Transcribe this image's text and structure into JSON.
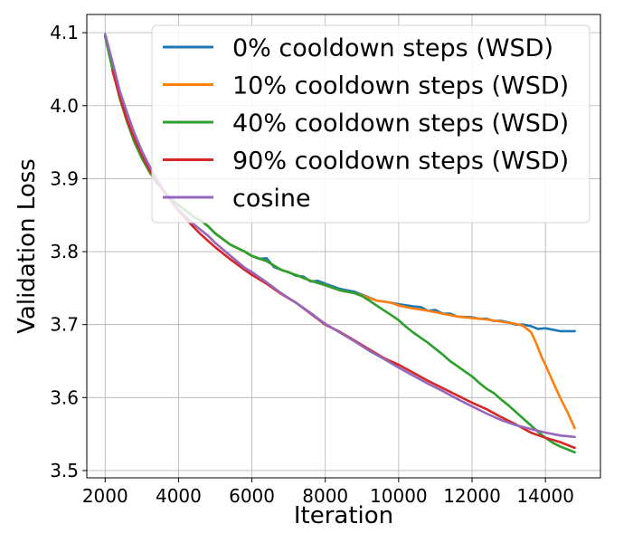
{
  "chart_data": {
    "type": "line",
    "title": "",
    "xlabel": "Iteration",
    "ylabel": "Validation Loss",
    "xlim": [
      1500,
      15500
    ],
    "ylim": [
      3.49,
      4.125
    ],
    "xticks": [
      2000,
      4000,
      6000,
      8000,
      10000,
      12000,
      14000
    ],
    "yticks": [
      3.5,
      3.6,
      3.7,
      3.8,
      3.9,
      4.0,
      4.1
    ],
    "grid": true,
    "legend_position": "top-right",
    "series": [
      {
        "name": "0% cooldown steps (WSD)",
        "color": "#1f77b4",
        "x": [
          2000,
          2200,
          2400,
          2600,
          2800,
          3000,
          3200,
          3400,
          3600,
          3800,
          4000,
          4200,
          4400,
          4600,
          4800,
          5000,
          5400,
          5800,
          6000,
          6200,
          6400,
          6600,
          6800,
          7000,
          7200,
          7400,
          7600,
          7800,
          8000,
          8400,
          8800,
          9000,
          9400,
          9800,
          10000,
          10400,
          10600,
          10800,
          11000,
          11200,
          11400,
          11600,
          12000,
          12200,
          12400,
          12600,
          12800,
          13000,
          13200,
          13400,
          13600,
          13800,
          14000,
          14200,
          14400,
          14600,
          14800
        ],
        "y": [
          4.095,
          4.05,
          4.01,
          3.978,
          3.95,
          3.928,
          3.91,
          3.895,
          3.883,
          3.872,
          3.864,
          3.856,
          3.848,
          3.843,
          3.835,
          3.825,
          3.81,
          3.8,
          3.794,
          3.79,
          3.791,
          3.779,
          3.775,
          3.772,
          3.767,
          3.766,
          3.759,
          3.76,
          3.756,
          3.749,
          3.745,
          3.741,
          3.733,
          3.73,
          3.728,
          3.725,
          3.724,
          3.719,
          3.72,
          3.715,
          3.715,
          3.711,
          3.71,
          3.708,
          3.708,
          3.705,
          3.705,
          3.703,
          3.7,
          3.7,
          3.698,
          3.694,
          3.695,
          3.693,
          3.691,
          3.691,
          3.691
        ]
      },
      {
        "name": "10% cooldown steps (WSD)",
        "color": "#ff7f0e",
        "x": [
          2000,
          2200,
          2400,
          2600,
          2800,
          3000,
          3200,
          3400,
          3600,
          3800,
          4000,
          4200,
          4400,
          4600,
          4800,
          5000,
          5400,
          5800,
          6000,
          6400,
          6800,
          7200,
          7600,
          8000,
          8400,
          8800,
          9000,
          9400,
          9800,
          10000,
          10400,
          10800,
          11200,
          11600,
          12000,
          12400,
          12800,
          13200,
          13400,
          13600,
          13700,
          13800,
          13900,
          14000,
          14200,
          14400,
          14600,
          14800
        ],
        "y": [
          4.095,
          4.05,
          4.01,
          3.978,
          3.95,
          3.928,
          3.91,
          3.895,
          3.883,
          3.872,
          3.864,
          3.856,
          3.848,
          3.843,
          3.835,
          3.825,
          3.81,
          3.8,
          3.794,
          3.787,
          3.775,
          3.768,
          3.76,
          3.754,
          3.747,
          3.743,
          3.74,
          3.733,
          3.73,
          3.726,
          3.722,
          3.719,
          3.715,
          3.711,
          3.709,
          3.707,
          3.704,
          3.701,
          3.698,
          3.69,
          3.68,
          3.668,
          3.655,
          3.645,
          3.622,
          3.6,
          3.58,
          3.558
        ]
      },
      {
        "name": "40% cooldown steps (WSD)",
        "color": "#2ca02c",
        "x": [
          2000,
          2200,
          2400,
          2600,
          2800,
          3000,
          3200,
          3400,
          3600,
          3800,
          4000,
          4200,
          4400,
          4600,
          4800,
          5000,
          5400,
          5800,
          6000,
          6400,
          6800,
          7200,
          7600,
          8000,
          8400,
          8800,
          9000,
          9200,
          9400,
          9800,
          10000,
          10200,
          10400,
          10600,
          10800,
          11000,
          11200,
          11400,
          11600,
          11800,
          12000,
          12200,
          12400,
          12600,
          12800,
          13000,
          13200,
          13400,
          13600,
          13800,
          14000,
          14200,
          14400,
          14600,
          14800
        ],
        "y": [
          4.095,
          4.05,
          4.01,
          3.978,
          3.95,
          3.928,
          3.91,
          3.895,
          3.883,
          3.872,
          3.864,
          3.856,
          3.848,
          3.843,
          3.835,
          3.825,
          3.81,
          3.8,
          3.794,
          3.787,
          3.775,
          3.768,
          3.76,
          3.754,
          3.747,
          3.743,
          3.739,
          3.733,
          3.726,
          3.713,
          3.706,
          3.697,
          3.689,
          3.682,
          3.675,
          3.667,
          3.659,
          3.65,
          3.643,
          3.636,
          3.629,
          3.62,
          3.612,
          3.606,
          3.597,
          3.589,
          3.58,
          3.571,
          3.562,
          3.553,
          3.545,
          3.538,
          3.533,
          3.529,
          3.525
        ]
      },
      {
        "name": "90% cooldown steps (WSD)",
        "color": "#d62728",
        "x": [
          2200,
          2400,
          2600,
          2800,
          3000,
          3200,
          3400,
          3600,
          3800,
          4000,
          4200,
          4400,
          4600,
          4800,
          5000,
          5400,
          5800,
          6000,
          6400,
          6800,
          7200,
          7600,
          8000,
          8400,
          8800,
          9200,
          9600,
          10000,
          10400,
          10800,
          11200,
          11600,
          12000,
          12400,
          12800,
          13200,
          13600,
          14000,
          14400,
          14800
        ],
        "y": [
          4.048,
          4.012,
          3.98,
          3.955,
          3.933,
          3.913,
          3.897,
          3.882,
          3.869,
          3.856,
          3.845,
          3.834,
          3.824,
          3.815,
          3.806,
          3.79,
          3.775,
          3.768,
          3.756,
          3.742,
          3.73,
          3.715,
          3.7,
          3.69,
          3.678,
          3.666,
          3.654,
          3.645,
          3.634,
          3.623,
          3.613,
          3.603,
          3.593,
          3.584,
          3.573,
          3.563,
          3.552,
          3.545,
          3.539,
          3.531
        ]
      },
      {
        "name": "cosine",
        "color": "#9467bd",
        "x": [
          2000,
          2200,
          2400,
          2600,
          2800,
          3000,
          3200,
          3400,
          3600,
          3800,
          4000,
          4200,
          4400,
          4600,
          4800,
          5000,
          5400,
          5800,
          6000,
          6400,
          6800,
          7200,
          7600,
          8000,
          8400,
          8800,
          9200,
          9600,
          10000,
          10400,
          10800,
          11200,
          11600,
          12000,
          12400,
          12800,
          13200,
          13600,
          14000,
          14400,
          14800
        ],
        "y": [
          4.098,
          4.06,
          4.02,
          3.99,
          3.962,
          3.938,
          3.918,
          3.9,
          3.884,
          3.87,
          3.858,
          3.848,
          3.838,
          3.83,
          3.822,
          3.812,
          3.795,
          3.778,
          3.772,
          3.758,
          3.743,
          3.73,
          3.716,
          3.701,
          3.689,
          3.677,
          3.664,
          3.653,
          3.641,
          3.63,
          3.619,
          3.609,
          3.598,
          3.588,
          3.578,
          3.569,
          3.562,
          3.557,
          3.552,
          3.548,
          3.546
        ]
      }
    ]
  }
}
